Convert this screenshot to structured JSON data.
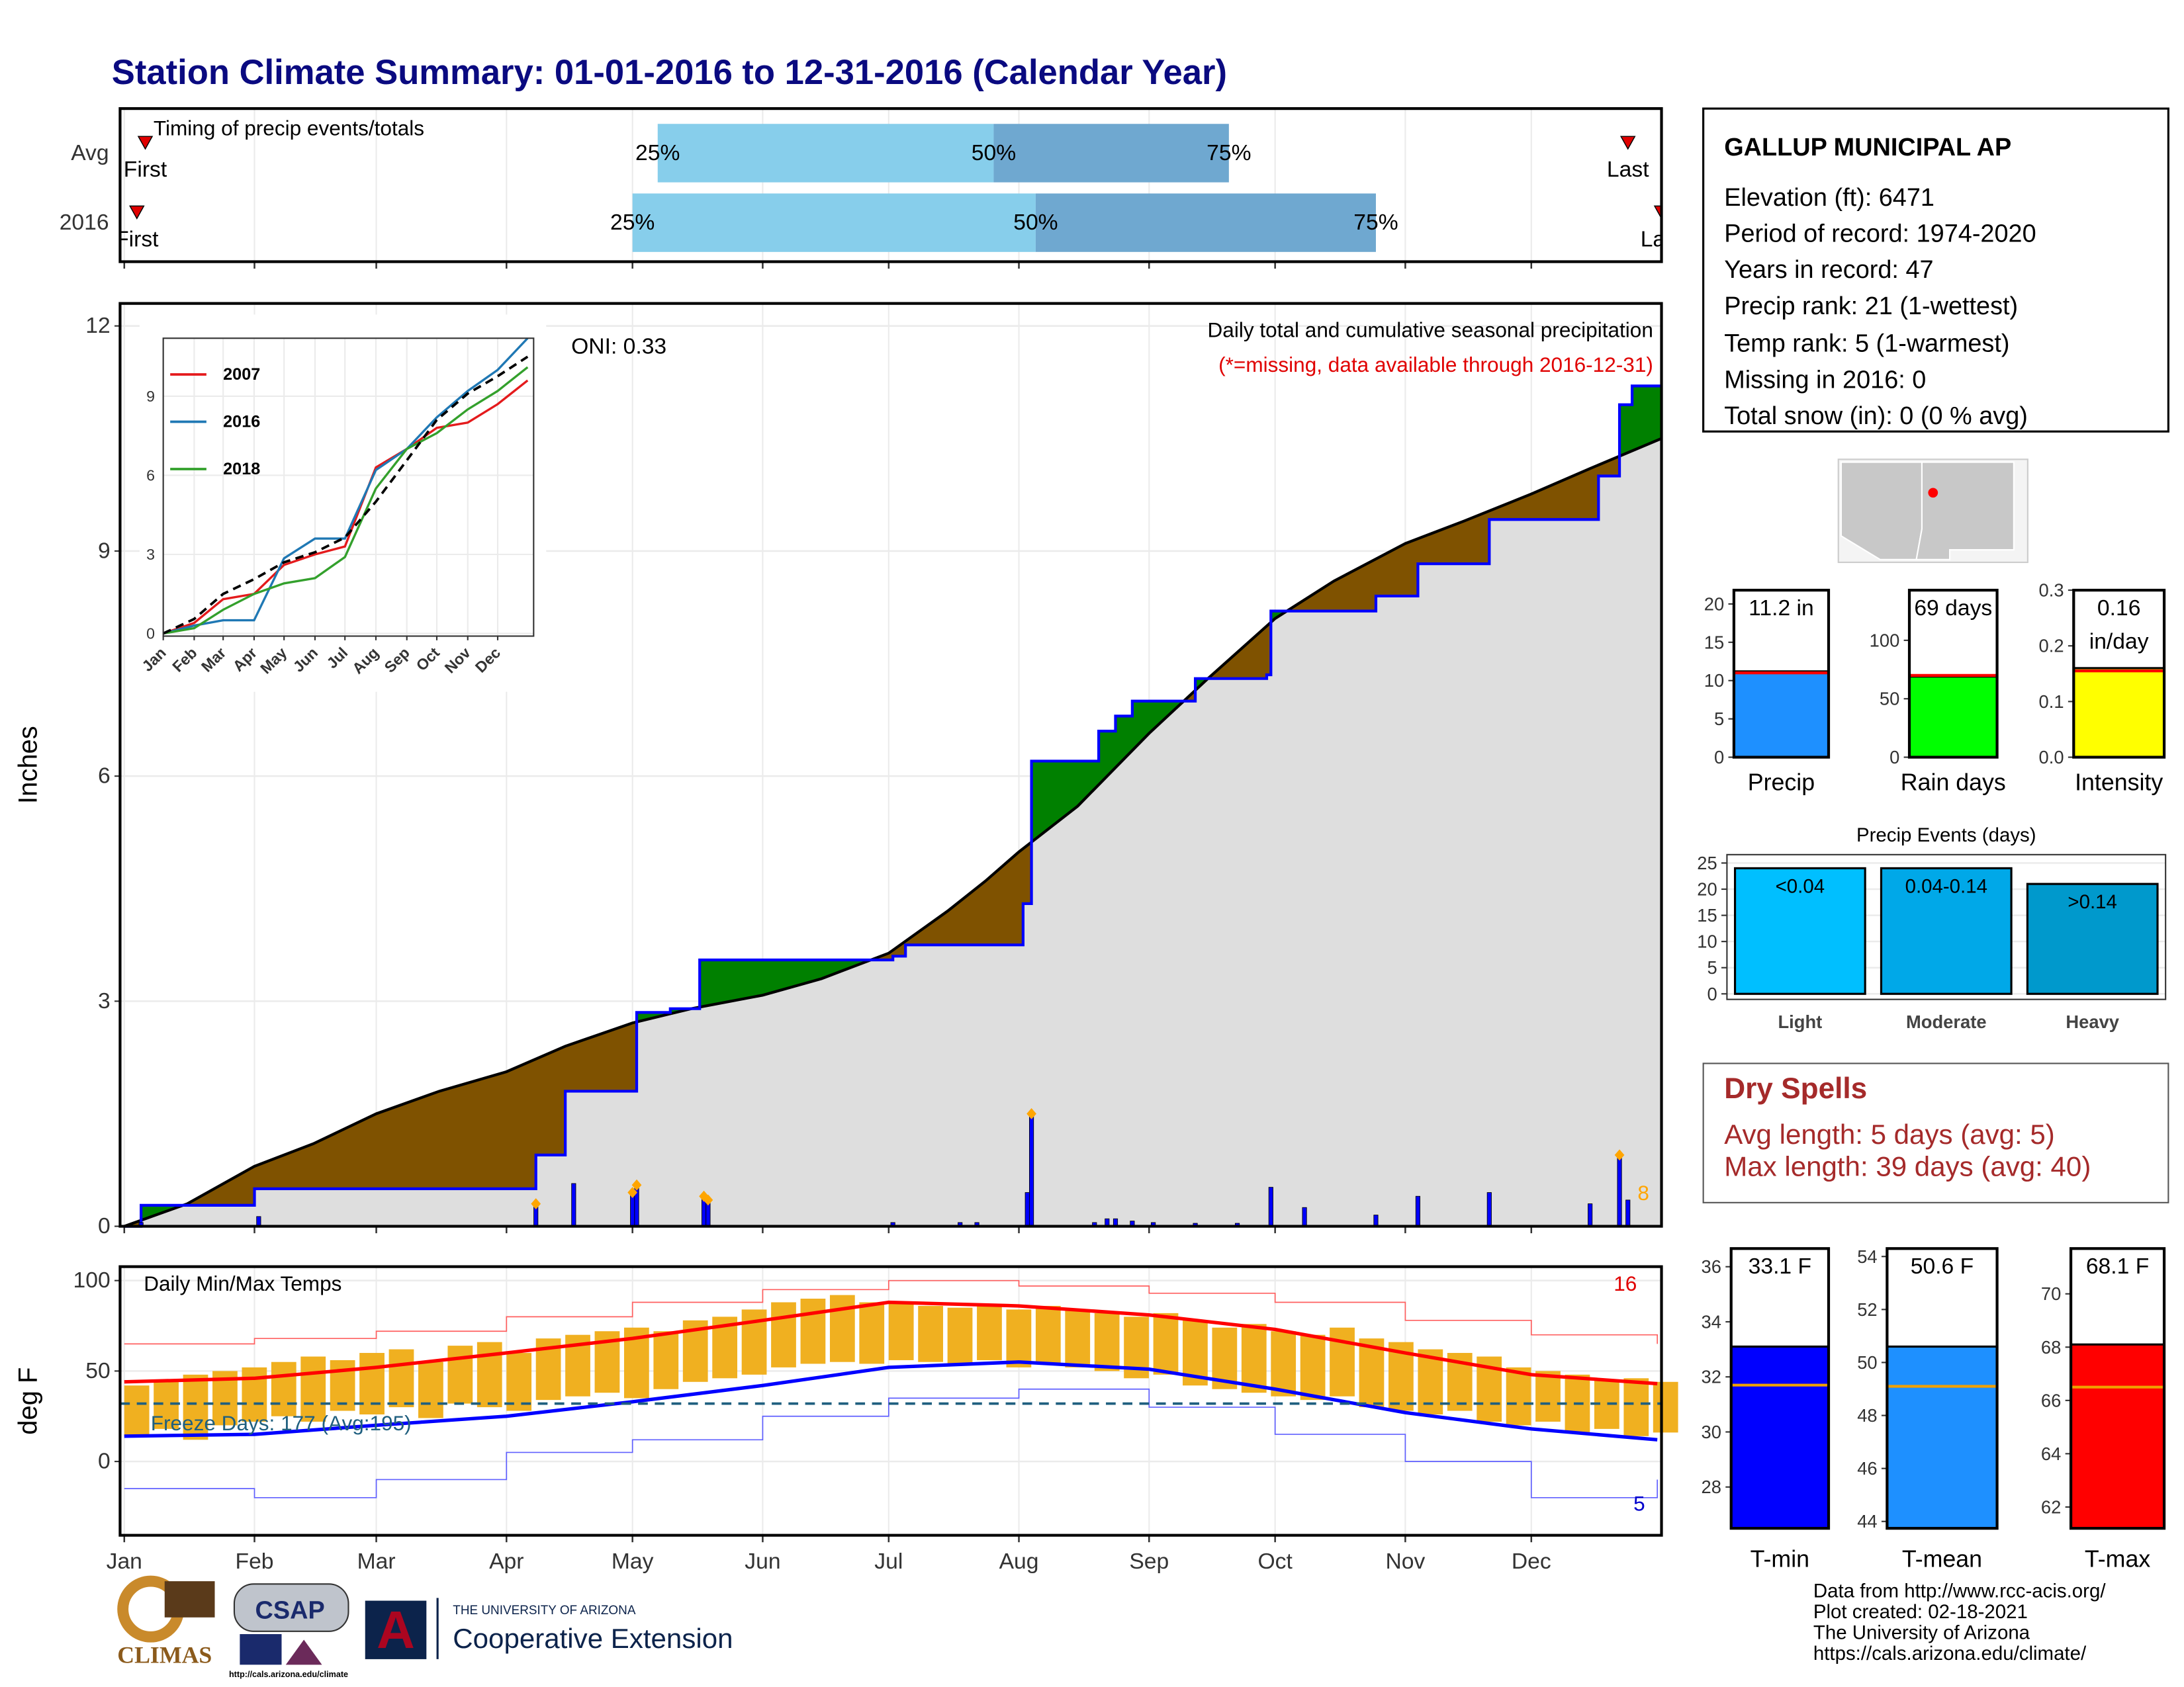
{
  "title": "Station Climate Summary: 01-01-2016 to 12-31-2016 (Calendar Year)",
  "station": {
    "name": "GALLUP MUNICIPAL AP",
    "lines": [
      "Elevation (ft): 6471",
      "Period of record: 1974-2020",
      "Years in record: 47",
      "Precip rank: 21 (1-wettest)",
      "Temp rank: 5 (1-warmest)",
      "Missing in 2016: 0",
      "Total snow (in): 0 (0 % avg)"
    ]
  },
  "dry_spells": {
    "title": "Dry Spells",
    "lines": [
      "Avg length: 5 days (avg: 5)",
      "Max length: 39 days (avg: 40)"
    ]
  },
  "footer": {
    "lines": [
      "Data from http://www.rcc-acis.org/",
      "Plot created: 02-18-2021",
      "The University of Arizona",
      "https://cals.arizona.edu/climate/"
    ]
  },
  "logos": {
    "climas": "CLIMAS",
    "csap": "CSAP",
    "csap_url": "http://cals.arizona.edu/climate",
    "university": "THE UNIVERSITY OF ARIZONA",
    "extension": "Cooperative Extension"
  },
  "chart_data": [
    {
      "type": "timing",
      "title": "Timing of precip events/totals",
      "categories": [
        "Avg",
        "2016"
      ],
      "markers": [
        "First",
        "25%",
        "50%",
        "75%",
        "Last"
      ],
      "values": [
        [
          5,
          127,
          207,
          263,
          358
        ],
        [
          3,
          121,
          217,
          298,
          366
        ]
      ],
      "colors": [
        "#87ceeb",
        "#6fa8d0"
      ],
      "marker_color": "#e00000",
      "xlim": [
        -1,
        366
      ]
    },
    {
      "type": "cumulative",
      "title": "Daily total and cumulative seasonal precipitation",
      "subtitle": "(*=missing, data available through 2016-12-31)",
      "annotation": "ONI: 0.33",
      "ylabel": "Inches",
      "record_label": 8,
      "xlim": [
        -1,
        366
      ],
      "ylim": [
        0,
        12.3
      ],
      "yticks": [
        0,
        3,
        6,
        9,
        12
      ],
      "grid": true,
      "series": [
        {
          "color": "#0000ff",
          "step": true,
          "x": [
            0,
            4,
            31,
            98,
            105,
            122,
            130,
            137,
            183,
            186,
            214,
            216,
            232,
            236,
            240,
            255,
            272,
            273,
            298,
            308,
            325,
            351,
            356,
            359,
            366
          ],
          "values": [
            0,
            0.28,
            0.5,
            0.95,
            1.8,
            2.85,
            2.9,
            3.55,
            3.6,
            3.75,
            4.3,
            6.2,
            6.6,
            6.8,
            7.0,
            7.3,
            7.35,
            8.2,
            8.4,
            8.83,
            9.42,
            10.0,
            10.95,
            11.2,
            11.2
          ]
        },
        {
          "color": "#000000",
          "step": false,
          "x": [
            0,
            15,
            31,
            45,
            60,
            75,
            91,
            105,
            121,
            135,
            152,
            166,
            182,
            196,
            205,
            213,
            227,
            244,
            258,
            274,
            288,
            305,
            319,
            335,
            349,
            366
          ],
          "values": [
            0,
            0.3,
            0.8,
            1.1,
            1.5,
            1.8,
            2.06,
            2.4,
            2.71,
            2.9,
            3.08,
            3.3,
            3.64,
            4.2,
            4.6,
            4.99,
            5.6,
            6.57,
            7.3,
            8.1,
            8.6,
            9.1,
            9.4,
            9.76,
            10.1,
            10.5
          ]
        }
      ],
      "fill_colors": {
        "above": "#008000",
        "below": "#7f5200",
        "both": "#dedede"
      },
      "daily": {
        "color": "#0000ff",
        "record_color": "#ffa500",
        "x": [
          4,
          32,
          98,
          107,
          121,
          122,
          138,
          139,
          183,
          199,
          203,
          215,
          216,
          231,
          234,
          236,
          240,
          245,
          255,
          265,
          273,
          281,
          298,
          308,
          325,
          349,
          356,
          358
        ],
        "values": [
          0.05,
          0.13,
          0.3,
          0.57,
          0.45,
          0.55,
          0.4,
          0.35,
          0.05,
          0.05,
          0.05,
          0.45,
          1.5,
          0.05,
          0.1,
          0.1,
          0.07,
          0.05,
          0.04,
          0.04,
          0.52,
          0.25,
          0.15,
          0.4,
          0.45,
          0.3,
          0.95,
          0.35
        ],
        "records": [
          2,
          4,
          5,
          6,
          7,
          12,
          26
        ]
      }
    },
    {
      "type": "line",
      "legend": "top-left",
      "xlim": [
        0,
        371
      ],
      "ylim": [
        -0.1,
        11.2
      ],
      "yticks": [
        0,
        3,
        6,
        9
      ],
      "xticks": [
        {
          "value": 0,
          "label": "Jan"
        },
        {
          "value": 31,
          "label": "Feb"
        },
        {
          "value": 60,
          "label": "Mar"
        },
        {
          "value": 91,
          "label": "Apr"
        },
        {
          "value": 121,
          "label": "May"
        },
        {
          "value": 152,
          "label": "Jun"
        },
        {
          "value": 182,
          "label": "Jul"
        },
        {
          "value": 213,
          "label": "Aug"
        },
        {
          "value": 244,
          "label": "Sep"
        },
        {
          "value": 274,
          "label": "Oct"
        },
        {
          "value": 305,
          "label": "Nov"
        },
        {
          "value": 335,
          "label": "Dec"
        }
      ],
      "x": [
        0,
        31,
        60,
        91,
        121,
        152,
        182,
        213,
        244,
        274,
        305,
        335,
        365
      ],
      "series": [
        {
          "name": "2007",
          "color": "#e41a1c",
          "values": [
            0,
            0.4,
            1.3,
            1.5,
            2.6,
            3.0,
            3.3,
            6.3,
            7.0,
            7.8,
            8.0,
            8.7,
            9.6
          ]
        },
        {
          "name": "2016",
          "color": "#1f78b4",
          "values": [
            0,
            0.3,
            0.5,
            0.5,
            2.85,
            3.6,
            3.6,
            6.2,
            7.0,
            8.2,
            9.2,
            10.0,
            11.2
          ]
        },
        {
          "name": "2018",
          "color": "#33a02c",
          "values": [
            0,
            0.2,
            0.9,
            1.5,
            1.9,
            2.1,
            2.9,
            5.5,
            7.0,
            7.6,
            8.5,
            9.2,
            10.1
          ]
        }
      ],
      "average": {
        "color": "#000000",
        "dashed": true,
        "values": [
          0,
          0.55,
          1.5,
          2.06,
          2.7,
          3.08,
          3.64,
          5.0,
          6.57,
          8.1,
          9.1,
          9.76,
          10.5
        ]
      }
    },
    {
      "type": "temperature",
      "title": "Daily Min/Max Temps",
      "ylabel": "deg F",
      "annotation": "Freeze Days: 177 (Avg:195)",
      "high_count": 16,
      "low_count": 5,
      "xlim": [
        -1,
        366
      ],
      "ylim": [
        -40.8,
        107.7
      ],
      "yticks": [
        0,
        50,
        100
      ],
      "grid": true,
      "xticks": [
        {
          "value": 0,
          "label": "Jan"
        },
        {
          "value": 31,
          "label": "Feb"
        },
        {
          "value": 60,
          "label": "Mar"
        },
        {
          "value": 91,
          "label": "Apr"
        },
        {
          "value": 121,
          "label": "May"
        },
        {
          "value": 152,
          "label": "Jun"
        },
        {
          "value": 182,
          "label": "Jul"
        },
        {
          "value": 213,
          "label": "Aug"
        },
        {
          "value": 244,
          "label": "Sep"
        },
        {
          "value": 274,
          "label": "Oct"
        },
        {
          "value": 305,
          "label": "Nov"
        },
        {
          "value": 335,
          "label": "Dec"
        }
      ],
      "freeze_line": 32,
      "freeze_color": "#1f5f7f",
      "daily": {
        "color": "#f0b020",
        "x": [
          0,
          7,
          14,
          21,
          28,
          35,
          42,
          49,
          56,
          63,
          70,
          77,
          84,
          91,
          98,
          105,
          112,
          119,
          126,
          133,
          140,
          147,
          154,
          161,
          168,
          175,
          182,
          189,
          196,
          203,
          210,
          217,
          224,
          231,
          238,
          245,
          252,
          259,
          266,
          273,
          280,
          287,
          294,
          301,
          308,
          315,
          322,
          329,
          336,
          343,
          350,
          357,
          364
        ],
        "high": [
          42,
          45,
          48,
          50,
          52,
          55,
          58,
          56,
          60,
          62,
          55,
          64,
          66,
          60,
          68,
          70,
          72,
          74,
          72,
          78,
          80,
          84,
          88,
          90,
          92,
          88,
          88,
          86,
          85,
          87,
          84,
          86,
          84,
          82,
          80,
          82,
          78,
          74,
          76,
          72,
          70,
          74,
          68,
          66,
          62,
          60,
          58,
          52,
          50,
          48,
          45,
          46,
          44
        ],
        "low": [
          14,
          18,
          12,
          20,
          22,
          25,
          22,
          28,
          26,
          30,
          24,
          32,
          30,
          28,
          34,
          36,
          38,
          35,
          40,
          44,
          46,
          48,
          52,
          54,
          55,
          54,
          56,
          55,
          54,
          56,
          52,
          54,
          52,
          50,
          46,
          48,
          42,
          40,
          38,
          36,
          34,
          36,
          30,
          28,
          26,
          28,
          22,
          20,
          22,
          16,
          18,
          14,
          16
        ]
      },
      "x": [
        0,
        31,
        60,
        91,
        121,
        152,
        182,
        213,
        244,
        274,
        305,
        335,
        365
      ],
      "series": [
        {
          "color": "#ff0000",
          "width": 2.5,
          "values": [
            44,
            46,
            52,
            60,
            68,
            78,
            88,
            86,
            81,
            73,
            60,
            48,
            43
          ]
        },
        {
          "color": "#0000ff",
          "width": 2.5,
          "values": [
            14,
            15,
            20,
            25,
            33,
            42,
            52,
            55,
            51,
            40,
            27,
            18,
            12
          ]
        },
        {
          "color": "#ff6060",
          "width": 0.8,
          "values": [
            65,
            68,
            72,
            80,
            88,
            95,
            100,
            97,
            93,
            88,
            78,
            70,
            65
          ]
        },
        {
          "color": "#6060ff",
          "width": 0.8,
          "values": [
            -15,
            -20,
            -10,
            5,
            12,
            25,
            35,
            40,
            30,
            15,
            0,
            -20,
            -10
          ]
        }
      ]
    },
    {
      "type": "single_bar",
      "categories": [
        "Precip"
      ],
      "values": [
        11.2
      ],
      "value_labels": [
        "11.2 in"
      ],
      "average": 11.0,
      "color": "#1e90ff",
      "avg_color": "#ff0000",
      "ylim": [
        0,
        21.8
      ],
      "yticks": [
        0,
        5,
        10,
        15,
        20
      ]
    },
    {
      "type": "single_bar",
      "categories": [
        "Rain days"
      ],
      "values": [
        69
      ],
      "value_labels": [
        "69 days"
      ],
      "average": 70,
      "color": "#00ff00",
      "avg_color": "#ff0000",
      "ylim": [
        0,
        142.9
      ],
      "yticks": [
        0,
        50,
        100
      ]
    },
    {
      "type": "single_bar",
      "categories": [
        "Intensity"
      ],
      "values": [
        0.16
      ],
      "value_labels": [
        "0.16 in/day"
      ],
      "average": 0.155,
      "color": "#ffff00",
      "avg_color": "#ff0000",
      "ylim": [
        0,
        0.3
      ],
      "yticks": [
        {
          "value": 0,
          "label": "0.0"
        },
        0.1,
        0.2,
        0.3
      ]
    },
    {
      "type": "bar",
      "title": "Precip Events (days)",
      "categories": [
        "Light",
        "Moderate",
        "Heavy"
      ],
      "values": [
        24,
        24,
        21
      ],
      "bin_labels": [
        "<0.04",
        "0.04-0.14",
        ">0.14"
      ],
      "colors": [
        "#00bfff",
        "#00a8e8",
        "#0099cc"
      ],
      "ylim": [
        -1.06,
        26.6
      ],
      "yticks": [
        0,
        5,
        10,
        15,
        20,
        25
      ],
      "grid": true
    },
    {
      "type": "single_bar",
      "categories": [
        "T-min"
      ],
      "values": [
        33.1
      ],
      "value_labels": [
        "33.1 F"
      ],
      "average": 31.7,
      "color": "#0000ff",
      "avg_color": "#f0a000",
      "ylim": [
        26.5,
        36.66
      ],
      "yticks": [
        28,
        30,
        32,
        34,
        36
      ]
    },
    {
      "type": "single_bar",
      "categories": [
        "T-mean"
      ],
      "values": [
        50.6
      ],
      "value_labels": [
        "50.6 F"
      ],
      "average": 49.1,
      "color": "#1e90ff",
      "avg_color": "#f0a000",
      "ylim": [
        43.74,
        54.3
      ],
      "yticks": [
        44,
        46,
        48,
        50,
        52,
        54
      ]
    },
    {
      "type": "single_bar",
      "categories": [
        "T-max"
      ],
      "values": [
        68.1
      ],
      "value_labels": [
        "68.1 F"
      ],
      "average": 66.5,
      "color": "#ff0000",
      "avg_color": "#f0a000",
      "ylim": [
        61.2,
        71.7
      ],
      "yticks": [
        62,
        64,
        66,
        68,
        70
      ]
    }
  ]
}
